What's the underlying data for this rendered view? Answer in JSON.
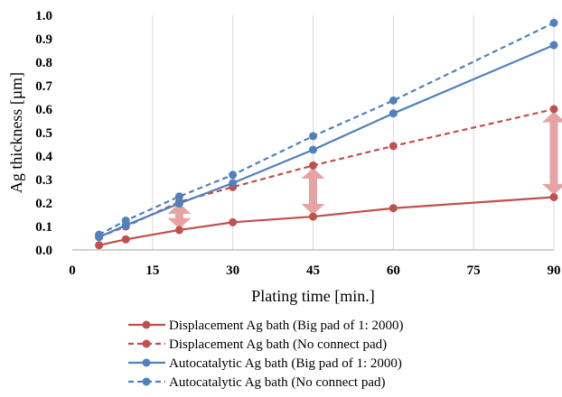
{
  "chart_data": {
    "type": "line",
    "title": "",
    "xlabel": "Plating time [min.]",
    "ylabel": "Ag thickness [µm]",
    "x_ticks": [
      "0",
      "15",
      "30",
      "45",
      "60",
      "75",
      "90"
    ],
    "y_ticks": [
      "0.0",
      "0.1",
      "0.2",
      "0.3",
      "0.4",
      "0.5",
      "0.6",
      "0.7",
      "0.8",
      "0.9",
      "1.0"
    ],
    "xlim": [
      0,
      90
    ],
    "ylim": [
      0,
      1.0
    ],
    "grid": "vertical",
    "legend_position": "bottom",
    "series": [
      {
        "name": "Displacement Ag bath (Big pad of 1: 2000)",
        "color": "#c0504d",
        "dash": "solid",
        "x": [
          5,
          10,
          20,
          30,
          45,
          60,
          90
        ],
        "y": [
          0.02,
          0.045,
          0.085,
          0.118,
          0.142,
          0.178,
          0.225
        ]
      },
      {
        "name": "Displacement  Ag bath (No connect pad)",
        "color": "#c0504d",
        "dash": "dashed",
        "x": [
          5,
          10,
          20,
          30,
          45,
          60,
          90
        ],
        "y": [
          0.055,
          0.1,
          0.205,
          0.268,
          0.36,
          0.443,
          0.6
        ]
      },
      {
        "name": "Autocatalytic  Ag bath (Big pad of 1: 2000)",
        "color": "#4f81bd",
        "dash": "solid",
        "x": [
          5,
          10,
          20,
          30,
          45,
          60,
          90
        ],
        "y": [
          0.055,
          0.105,
          0.198,
          0.285,
          0.427,
          0.582,
          0.873
        ]
      },
      {
        "name": "Autocatalytic  Ag bath (No connect pad)",
        "color": "#4f81bd",
        "dash": "dashed",
        "x": [
          5,
          10,
          20,
          30,
          45,
          60,
          90
        ],
        "y": [
          0.065,
          0.125,
          0.228,
          0.32,
          0.485,
          0.637,
          0.968
        ]
      }
    ],
    "annotations": [
      {
        "type": "double-arrow",
        "color": "#e6a3a3",
        "x": 20,
        "y_from": 0.09,
        "y_to": 0.2
      },
      {
        "type": "double-arrow",
        "color": "#e6a3a3",
        "x": 45,
        "y_from": 0.15,
        "y_to": 0.35
      },
      {
        "type": "double-arrow",
        "color": "#e6a3a3",
        "x": 90,
        "y_from": 0.235,
        "y_to": 0.59
      }
    ]
  }
}
